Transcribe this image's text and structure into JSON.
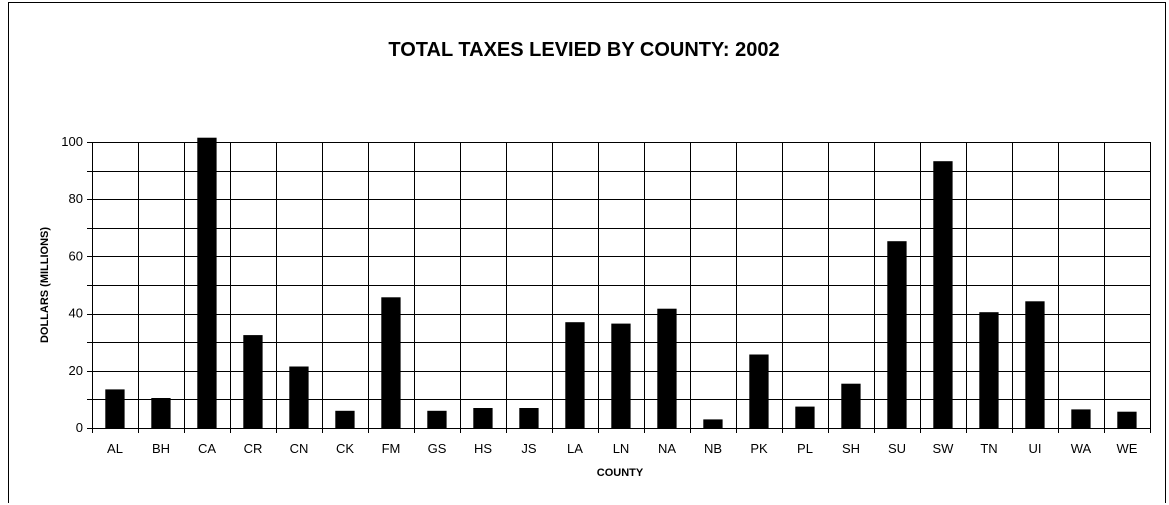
{
  "chart_data": {
    "type": "bar",
    "title": "TOTAL TAXES LEVIED BY COUNTY: 2002",
    "xlabel": "COUNTY",
    "ylabel": "DOLLARS (MILLIONS)",
    "ylim": [
      0,
      100
    ],
    "yticks": [
      "0",
      "20",
      "40",
      "60",
      "80",
      "100"
    ],
    "grid": true,
    "legend": "none",
    "bar_color": "#000000",
    "categories": [
      "AL",
      "BH",
      "CA",
      "CR",
      "CN",
      "CK",
      "FM",
      "GS",
      "HS",
      "JS",
      "LA",
      "LN",
      "NA",
      "NB",
      "PK",
      "PL",
      "SH",
      "SU",
      "SW",
      "TN",
      "UI",
      "WA",
      "WE"
    ],
    "values": [
      13.5,
      10.5,
      101.5,
      32.5,
      21.5,
      6,
      45.7,
      6,
      7,
      7,
      37,
      36.5,
      41.7,
      3,
      25.7,
      7.5,
      15.5,
      65.3,
      93.3,
      40.5,
      44.3,
      6.5,
      5.7
    ]
  }
}
